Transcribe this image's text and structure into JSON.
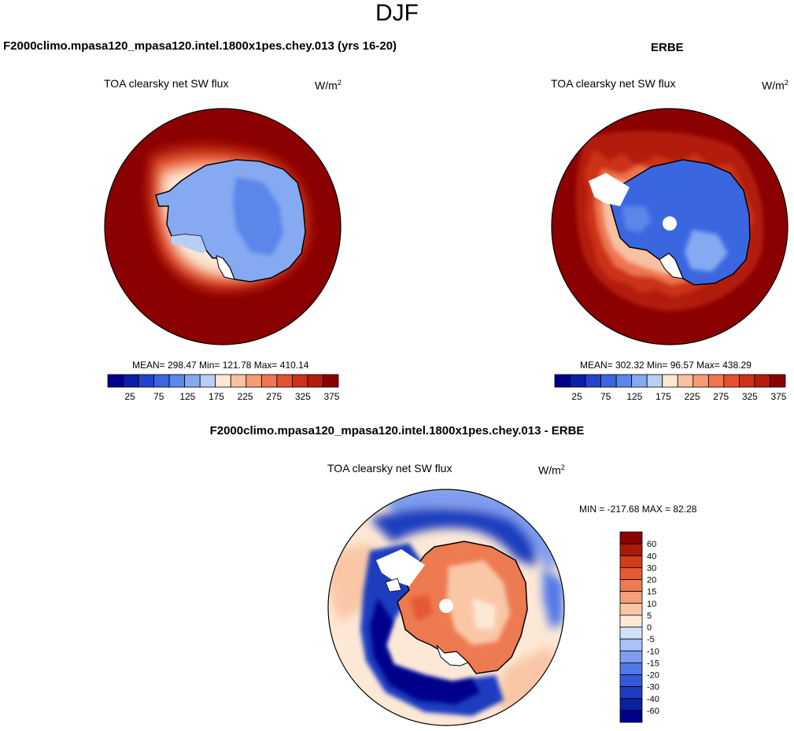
{
  "page": {
    "season": "DJF"
  },
  "palettes": {
    "sequential": [
      "#00008b",
      "#0a1fa8",
      "#2244cc",
      "#3a66e0",
      "#5b86ea",
      "#86aaf2",
      "#b8cef6",
      "#fde6d3",
      "#f8c1a1",
      "#f49c75",
      "#ee7650",
      "#e4512f",
      "#cc3218",
      "#b21d0e",
      "#8b0000"
    ],
    "diverging": [
      "#00008b",
      "#0b1f9f",
      "#1e3cc0",
      "#3458dc",
      "#5078e8",
      "#7e9df0",
      "#a9c3f5",
      "#d2e3f8",
      "#fde8d6",
      "#f9c7a6",
      "#f4a07a",
      "#ee7a52",
      "#e55a35",
      "#d23b1e",
      "#a81a0c",
      "#8b0000"
    ]
  },
  "panels": {
    "model": {
      "title": "F2000climo.mpasa120_mpasa120.intel.1800x1pes.chey.013 (yrs 16-20)",
      "variable": "TOA clearsky net SW flux",
      "units_base": "W/m",
      "units_exp": "2",
      "stats": "MEAN= 298.47  Min= 121.78  Max= 410.14"
    },
    "obs": {
      "title": "ERBE",
      "variable": "TOA clearsky net SW flux",
      "units_base": "W/m",
      "units_exp": "2",
      "stats": "MEAN= 302.32  Min=  96.57  Max= 438.29"
    },
    "diff": {
      "title": "F2000climo.mpasa120_mpasa120.intel.1800x1pes.chey.013 - ERBE",
      "variable": "TOA clearsky net SW flux",
      "units_base": "W/m",
      "units_exp": "2",
      "stats": "MIN = -217.68 MAX =  82.28"
    }
  },
  "chart_data": [
    {
      "type": "heatmap",
      "projection": "south-polar stereographic",
      "title": "F2000climo.mpasa120_mpasa120.intel.1800x1pes.chey.013 (yrs 16-20)",
      "variable": "TOA clearsky net SW flux",
      "units": "W/m2",
      "mean": 298.47,
      "min": 121.78,
      "max": 410.14,
      "colorbar_ticks": [
        25,
        75,
        125,
        175,
        225,
        275,
        325,
        375
      ],
      "colorbar_range": [
        0,
        400
      ],
      "colorbar_levels": 15
    },
    {
      "type": "heatmap",
      "projection": "south-polar stereographic",
      "title": "ERBE",
      "variable": "TOA clearsky net SW flux",
      "units": "W/m2",
      "mean": 302.32,
      "min": 96.57,
      "max": 438.29,
      "colorbar_ticks": [
        25,
        75,
        125,
        175,
        225,
        275,
        325,
        375
      ],
      "colorbar_range": [
        0,
        400
      ],
      "colorbar_levels": 15
    },
    {
      "type": "heatmap",
      "projection": "south-polar stereographic",
      "title": "F2000climo.mpasa120_mpasa120.intel.1800x1pes.chey.013 - ERBE",
      "variable": "TOA clearsky net SW flux",
      "units": "W/m2",
      "min": -217.68,
      "max": 82.28,
      "colorbar_levels": [
        "60",
        "40",
        "30",
        "20",
        "15",
        "10",
        "5",
        "0",
        "-5",
        "-10",
        "-15",
        "-20",
        "-30",
        "-40",
        "-60"
      ]
    }
  ]
}
